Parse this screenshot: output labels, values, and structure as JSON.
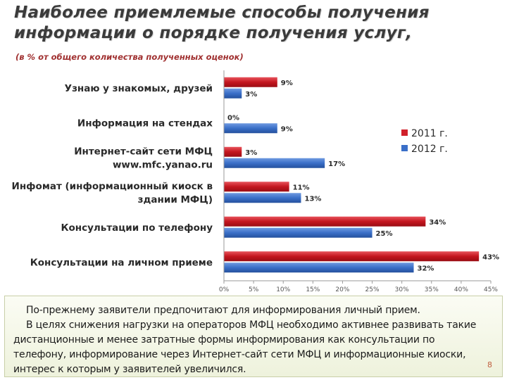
{
  "slide": {
    "title": "Наиболее приемлемые способы получения информации о порядке получения услуг,",
    "subtitle": "(в % от общего количества полученных оценок)",
    "note_lines": [
      "По-прежнему заявители предпочитают для информирования личный прием.",
      "В целях снижения нагрузки на операторов МФЦ необходимо активнее развивать такие дистанционные и менее затратные формы информирования как консультации по телефону, информирование через Интернет-сайт сети МФЦ и информационные киоски, интерес к которым у заявителей увеличился."
    ],
    "page_number": "8"
  },
  "chart_data": {
    "type": "bar",
    "orientation": "horizontal",
    "categories": [
      [
        "Узнаю у знакомых, друзей"
      ],
      [
        "Информация на стендах"
      ],
      [
        "Интернет-сайт сети МФЦ",
        "www.mfc.yanao.ru"
      ],
      [
        "Инфомат (информационный киоск в",
        "здании МФЦ)"
      ],
      [
        "Консультации по телефону"
      ],
      [
        "Консультации на личном приеме"
      ]
    ],
    "series": [
      {
        "name": "2011 г.",
        "color": "#d0202a",
        "values": [
          9,
          0,
          3,
          11,
          34,
          43
        ],
        "labels": [
          "9%",
          "0%",
          "3%",
          "11%",
          "34%",
          "43%"
        ]
      },
      {
        "name": "2012 г.",
        "color": "#3a6fc8",
        "values": [
          3,
          9,
          17,
          13,
          25,
          32
        ],
        "labels": [
          "3%",
          "9%",
          "17%",
          "13%",
          "25%",
          "32%"
        ]
      }
    ],
    "x_ticks": [
      "0%",
      "5%",
      "10%",
      "15%",
      "20%",
      "25%",
      "30%",
      "35%",
      "40%",
      "45%"
    ],
    "xlim": [
      0,
      45
    ],
    "grid": false,
    "legend_position": "right"
  }
}
